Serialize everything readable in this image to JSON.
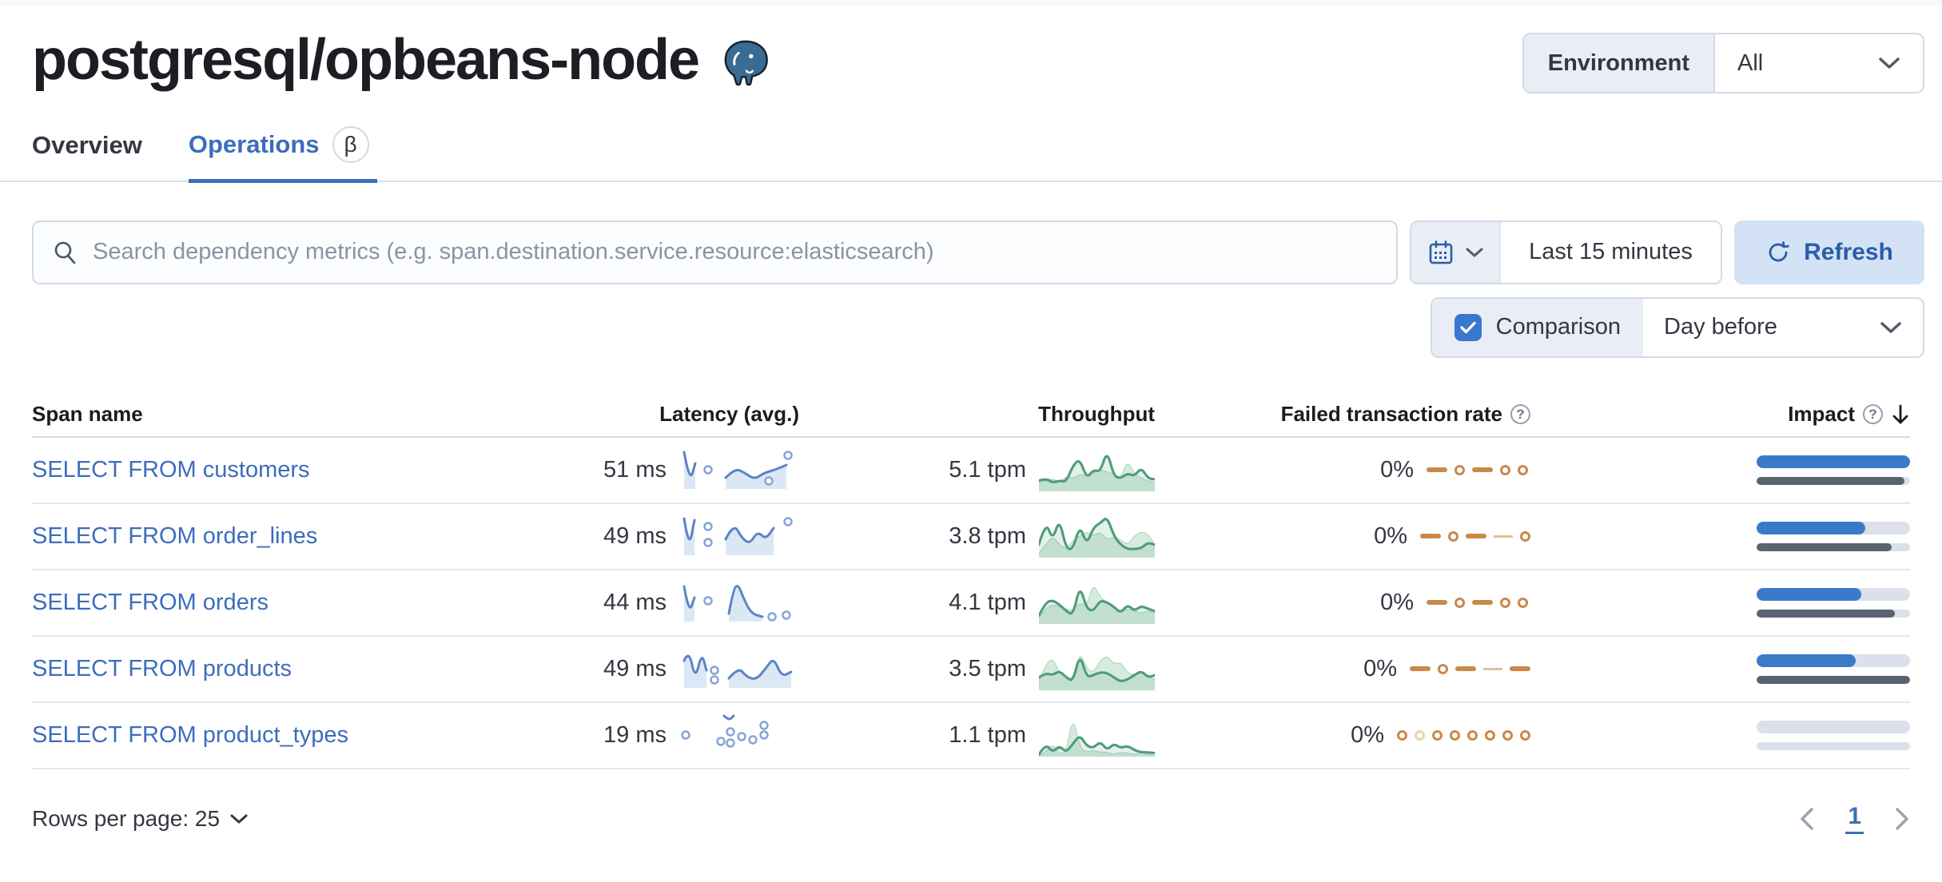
{
  "page": {
    "title": "postgresql/opbeans-node"
  },
  "environment": {
    "label": "Environment",
    "value": "All"
  },
  "tabs": {
    "overview": "Overview",
    "operations": "Operations",
    "beta_badge": "β"
  },
  "toolbar": {
    "search_placeholder": "Search dependency metrics (e.g. span.destination.service.resource:elasticsearch)",
    "time_range": "Last 15 minutes",
    "refresh_label": "Refresh"
  },
  "comparison": {
    "label": "Comparison",
    "checked": true,
    "value": "Day before"
  },
  "table": {
    "headers": {
      "span_name": "Span name",
      "latency": "Latency (avg.)",
      "throughput": "Throughput",
      "failed_rate": "Failed transaction rate",
      "impact": "Impact"
    },
    "rows": [
      {
        "span_name": "SELECT FROM customers",
        "latency": "51 ms",
        "throughput": "5.1 tpm",
        "failed_rate": "0%",
        "impact": {
          "current": 100,
          "previous": 96.5
        },
        "latency_spark": {
          "segments": [
            {
              "pts": [
                [
                  6,
                  8
                ],
                [
                  13,
                  46
                ],
                [
                  20,
                  22
                ]
              ],
              "area": true
            },
            {
              "pts": [
                [
                  58,
                  40
                ],
                [
                  70,
                  28
                ],
                [
                  82,
                  34
                ],
                [
                  94,
                  42
                ],
                [
                  106,
                  34
                ],
                [
                  120,
                  30
                ],
                [
                  134,
                  24
                ]
              ],
              "area": true
            }
          ],
          "dots": [
            [
              36,
              30
            ],
            [
              112,
              44
            ],
            [
              136,
              12
            ]
          ]
        },
        "throughput_spark": {
          "current": [
            0.25,
            0.3,
            0.2,
            0.25,
            0.22,
            0.6,
            0.75,
            0.3,
            0.5,
            0.45,
            0.95,
            0.35,
            0.3,
            0.42,
            0.35,
            0.55,
            0.3,
            0.28
          ],
          "previous": [
            0.2,
            0.25,
            0.3,
            0.2,
            0.35,
            0.3,
            0.4,
            0.35,
            0.42,
            0.5,
            0.45,
            0.4,
            0.3,
            0.72,
            0.4,
            0.3,
            0.25,
            0.2
          ]
        },
        "failed_spark": [
          "dash",
          "dot",
          "dash",
          "dot",
          "dot"
        ]
      },
      {
        "span_name": "SELECT FROM order_lines",
        "latency": "49 ms",
        "throughput": "3.8 tpm",
        "failed_rate": "0%",
        "impact": {
          "current": 71,
          "previous": 88
        },
        "latency_spark": {
          "segments": [
            {
              "pts": [
                [
                  6,
                  8
                ],
                [
                  12,
                  46
                ],
                [
                  19,
                  10
                ]
              ],
              "area": true
            },
            {
              "pts": [
                [
                  58,
                  34
                ],
                [
                  68,
                  14
                ],
                [
                  78,
                  32
                ],
                [
                  88,
                  40
                ],
                [
                  98,
                  24
                ],
                [
                  108,
                  34
                ],
                [
                  118,
                  20
                ]
              ],
              "area": true
            }
          ],
          "dots": [
            [
              36,
              18
            ],
            [
              36,
              38
            ],
            [
              136,
              12
            ]
          ]
        },
        "throughput_spark": {
          "current": [
            0.3,
            0.85,
            0.4,
            0.9,
            0.2,
            0.2,
            0.75,
            0.3,
            0.7,
            0.8,
            0.95,
            0.5,
            0.3,
            0.2,
            0.2,
            0.22,
            0.35,
            0.3
          ],
          "previous": [
            0.1,
            0.3,
            0.5,
            0.3,
            0.2,
            0.4,
            0.5,
            0.6,
            0.5,
            0.6,
            0.4,
            0.5,
            0.4,
            0.3,
            0.5,
            0.6,
            0.55,
            0.3
          ]
        },
        "failed_spark": [
          "dash",
          "dot",
          "dash",
          "thin",
          "dot"
        ]
      },
      {
        "span_name": "SELECT FROM orders",
        "latency": "44 ms",
        "throughput": "4.1 tpm",
        "failed_rate": "0%",
        "impact": {
          "current": 68,
          "previous": 90
        },
        "latency_spark": {
          "segments": [
            {
              "pts": [
                [
                  6,
                  10
                ],
                [
                  12,
                  44
                ],
                [
                  19,
                  24
                ]
              ],
              "area": true
            },
            {
              "pts": [
                [
                  62,
                  44
                ],
                [
                  68,
                  12
                ],
                [
                  74,
                  8
                ],
                [
                  80,
                  24
                ],
                [
                  90,
                  44
                ],
                [
                  104,
                  48
                ]
              ],
              "area": true
            }
          ],
          "dots": [
            [
              36,
              28
            ],
            [
              116,
              48
            ],
            [
              134,
              46
            ]
          ]
        },
        "throughput_spark": {
          "current": [
            0.2,
            0.5,
            0.55,
            0.45,
            0.3,
            0.2,
            0.9,
            0.35,
            0.3,
            0.55,
            0.5,
            0.4,
            0.25,
            0.45,
            0.3,
            0.42,
            0.35,
            0.3
          ],
          "previous": [
            0.15,
            0.35,
            0.45,
            0.4,
            0.35,
            0.3,
            0.5,
            0.4,
            0.95,
            0.6,
            0.5,
            0.35,
            0.3,
            0.35,
            0.3,
            0.25,
            0.3,
            0.25
          ]
        },
        "failed_spark": [
          "dash",
          "dot",
          "dash",
          "dot",
          "dot"
        ]
      },
      {
        "span_name": "SELECT FROM products",
        "latency": "49 ms",
        "throughput": "3.5 tpm",
        "failed_rate": "0%",
        "impact": {
          "current": 64.5,
          "previous": 100
        },
        "latency_spark": {
          "segments": [
            {
              "pts": [
                [
                  6,
                  20
                ],
                [
                  12,
                  6
                ],
                [
                  20,
                  44
                ],
                [
                  28,
                  10
                ],
                [
                  34,
                  32
                ]
              ],
              "area": true
            },
            {
              "pts": [
                [
                  62,
                  42
                ],
                [
                  74,
                  28
                ],
                [
                  84,
                  40
                ],
                [
                  96,
                  44
                ],
                [
                  108,
                  30
                ],
                [
                  118,
                  16
                ],
                [
                  128,
                  40
                ],
                [
                  140,
                  34
                ]
              ],
              "area": true
            }
          ],
          "dots": [
            [
              44,
              32
            ],
            [
              44,
              44
            ]
          ]
        },
        "throughput_spark": {
          "current": [
            0.3,
            0.4,
            0.35,
            0.45,
            0.3,
            0.2,
            0.85,
            0.3,
            0.35,
            0.42,
            0.4,
            0.3,
            0.2,
            0.25,
            0.35,
            0.45,
            0.3,
            0.35
          ],
          "previous": [
            0.2,
            0.6,
            0.75,
            0.4,
            0.3,
            0.25,
            0.9,
            0.5,
            0.4,
            0.7,
            0.8,
            0.6,
            0.65,
            0.4,
            0.35,
            0.45,
            0.3,
            0.25
          ]
        },
        "failed_spark": [
          "dash",
          "dot",
          "dash",
          "thin",
          "dash"
        ]
      },
      {
        "span_name": "SELECT FROM product_types",
        "latency": "19 ms",
        "throughput": "1.1 tpm",
        "failed_rate": "0%",
        "impact": {
          "current": 0,
          "previous": 0
        },
        "latency_spark": {
          "segments": [
            {
              "pts": [
                [
                  56,
                  6
                ],
                [
                  62,
                  12
                ],
                [
                  68,
                  6
                ]
              ],
              "area": false
            }
          ],
          "dots": [
            [
              8,
              30
            ],
            [
              52,
              38
            ],
            [
              64,
              26
            ],
            [
              64,
              40
            ],
            [
              78,
              32
            ],
            [
              92,
              36
            ],
            [
              106,
              30
            ],
            [
              106,
              18
            ]
          ]
        },
        "throughput_spark": {
          "current": [
            0.05,
            0.3,
            0.1,
            0.25,
            0.1,
            0.3,
            0.5,
            0.25,
            0.2,
            0.35,
            0.15,
            0.3,
            0.2,
            0.25,
            0.15,
            0.1,
            0.1,
            0.08
          ],
          "previous": [
            0.02,
            0.1,
            0.3,
            0.05,
            0.1,
            0.95,
            0.2,
            0.1,
            0.15,
            0.1,
            0.1,
            0.05,
            0.1,
            0.08,
            0.05,
            0.1,
            0.05,
            0.02
          ]
        },
        "failed_spark": [
          "dot",
          "fdot",
          "dot",
          "dot",
          "dot",
          "dot",
          "dot",
          "dot"
        ]
      }
    ]
  },
  "pagination": {
    "rows_per_page": "Rows per page: 25",
    "current_page": "1"
  },
  "colors": {
    "link_blue": "#3d6dbb",
    "latency_line": "#5b84c4",
    "latency_area": "#dce7f5",
    "throughput_green": "#4e9c7c",
    "throughput_area": "#d7ebdd",
    "failed_orange": "#c9894a",
    "impact_current": "#3b7ac9",
    "impact_previous": "#5b6371"
  }
}
